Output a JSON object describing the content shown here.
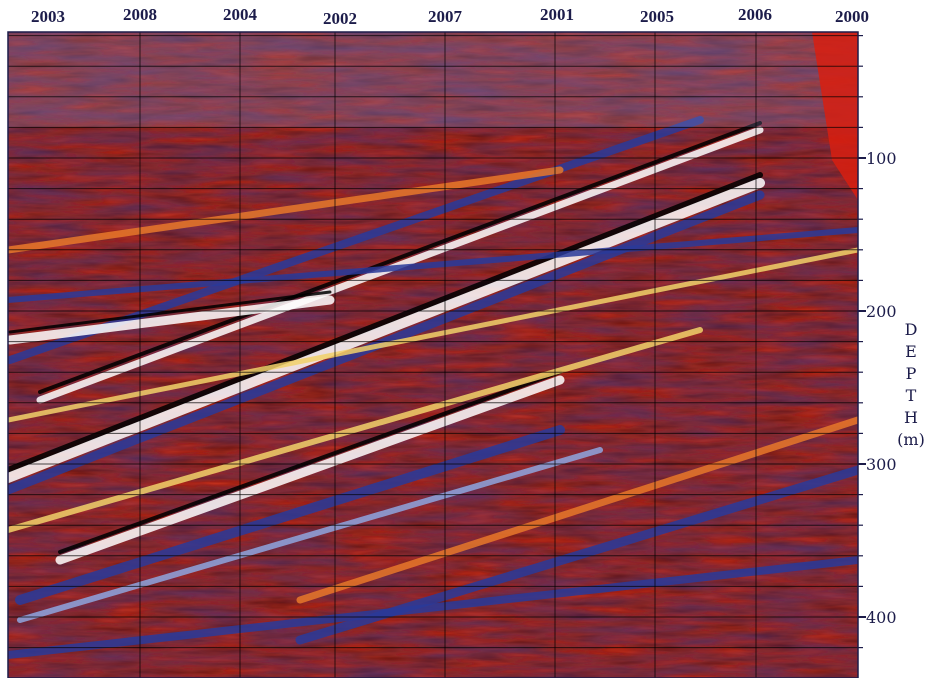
{
  "chart_data": {
    "type": "heatmap",
    "title": "",
    "top_labels": [
      "2003",
      "2008",
      "2004",
      "2002",
      "2007",
      "2001",
      "2005",
      "2006",
      "2000"
    ],
    "ylabel_letters": [
      "D",
      "E",
      "P",
      "T",
      "H",
      "(m)"
    ],
    "y_ticks": [
      100,
      200,
      300,
      400
    ],
    "y_tick_labels": [
      "100",
      "200",
      "300",
      "400"
    ],
    "ylim": [
      0,
      440
    ],
    "grid": true,
    "palette": {
      "red": "#c8321e",
      "dark_red": "#5a0f10",
      "orange": "#e8782a",
      "yellow": "#f2d26a",
      "blue": "#2a3a9a",
      "light_blue": "#8fa6e0",
      "white": "#ffffff",
      "black": "#000000"
    }
  }
}
